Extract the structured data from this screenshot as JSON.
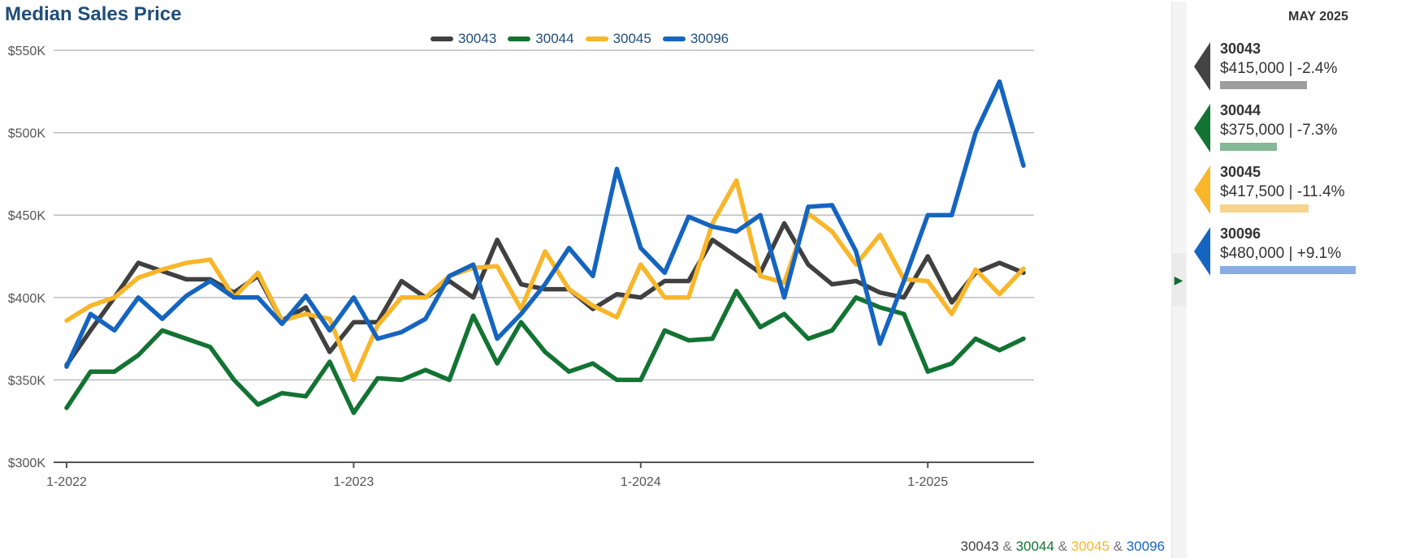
{
  "title": "Median Sales Price",
  "chart_data": {
    "type": "line",
    "ylim": [
      300000,
      550000
    ],
    "yticks": [
      {
        "value": 550000,
        "label": "$550K"
      },
      {
        "value": 500000,
        "label": "$500K"
      },
      {
        "value": 450000,
        "label": "$450K"
      },
      {
        "value": 400000,
        "label": "$400K"
      },
      {
        "value": 350000,
        "label": "$350K"
      },
      {
        "value": 300000,
        "label": "$300K"
      }
    ],
    "x": [
      "2022-01",
      "2022-02",
      "2022-03",
      "2022-04",
      "2022-05",
      "2022-06",
      "2022-07",
      "2022-08",
      "2022-09",
      "2022-10",
      "2022-11",
      "2022-12",
      "2023-01",
      "2023-02",
      "2023-03",
      "2023-04",
      "2023-05",
      "2023-06",
      "2023-07",
      "2023-08",
      "2023-09",
      "2023-10",
      "2023-11",
      "2023-12",
      "2024-01",
      "2024-02",
      "2024-03",
      "2024-04",
      "2024-05",
      "2024-06",
      "2024-07",
      "2024-08",
      "2024-09",
      "2024-10",
      "2024-11",
      "2024-12",
      "2025-01",
      "2025-02",
      "2025-03",
      "2025-04",
      "2025-05"
    ],
    "xticks": [
      {
        "x": "2022-01",
        "label": "1-2022"
      },
      {
        "x": "2023-01",
        "label": "1-2023"
      },
      {
        "x": "2024-01",
        "label": "1-2024"
      },
      {
        "x": "2025-01",
        "label": "1-2025"
      }
    ],
    "grid": true,
    "legend_position": "top",
    "series": [
      {
        "name": "30043",
        "color": "#404040",
        "values": [
          359000,
          380000,
          400000,
          421000,
          416000,
          411000,
          411000,
          403000,
          413000,
          386000,
          394000,
          367000,
          385000,
          385000,
          410000,
          400000,
          410000,
          400000,
          435000,
          408000,
          405000,
          405000,
          393000,
          402000,
          400000,
          410000,
          410000,
          435000,
          425000,
          415000,
          445000,
          420000,
          408000,
          410000,
          403000,
          400000,
          425000,
          397000,
          415000,
          421000,
          415000
        ]
      },
      {
        "name": "30044",
        "color": "#137333",
        "values": [
          333000,
          355000,
          355000,
          365000,
          380000,
          375000,
          370000,
          350000,
          335000,
          342000,
          340000,
          361000,
          330000,
          351000,
          350000,
          356000,
          350000,
          389000,
          360000,
          385000,
          367000,
          355000,
          360000,
          350000,
          350000,
          380000,
          374000,
          375000,
          404000,
          382000,
          390000,
          375000,
          380000,
          400000,
          394000,
          390000,
          355000,
          360000,
          375000,
          368000,
          375000
        ]
      },
      {
        "name": "30045",
        "color": "#f8b62a",
        "values": [
          386000,
          395000,
          400000,
          412000,
          417000,
          421000,
          423000,
          400000,
          415000,
          386000,
          390000,
          387000,
          350000,
          383000,
          400000,
          400000,
          413000,
          418000,
          419000,
          393000,
          428000,
          405000,
          395000,
          388000,
          420000,
          400000,
          400000,
          445000,
          471000,
          413000,
          409000,
          451000,
          440000,
          420000,
          438000,
          411000,
          410000,
          390000,
          417000,
          402000,
          417500
        ]
      },
      {
        "name": "30096",
        "color": "#1565c0",
        "values": [
          358000,
          390000,
          380000,
          400000,
          387000,
          401000,
          410000,
          400000,
          400000,
          384000,
          401000,
          380000,
          400000,
          375000,
          379000,
          387000,
          413000,
          420000,
          375000,
          390000,
          408000,
          430000,
          413000,
          478000,
          430000,
          415000,
          449000,
          443000,
          440000,
          450000,
          400000,
          455000,
          456000,
          428000,
          372000,
          410000,
          450000,
          450000,
          500000,
          531000,
          480000
        ]
      }
    ]
  },
  "footer_series": [
    {
      "name": "30043",
      "color": "#404040"
    },
    {
      "name": "30044",
      "color": "#137333"
    },
    {
      "name": "30045",
      "color": "#f8b62a"
    },
    {
      "name": "30096",
      "color": "#1565c0"
    }
  ],
  "footer_separator": "&",
  "side_panel": {
    "title": "MAY 2025",
    "cards": [
      {
        "name": "30043",
        "value": "$415,000 | -2.4%",
        "color": "#444444",
        "bar_color": "#9e9e9e",
        "bar_fraction": 0.415
      },
      {
        "name": "30044",
        "value": "$375,000 | -7.3%",
        "color": "#137333",
        "bar_color": "#85b896",
        "bar_fraction": 0.375
      },
      {
        "name": "30045",
        "value": "$417,500 | -11.4%",
        "color": "#f8b62a",
        "bar_color": "#f7d58c",
        "bar_fraction": 0.4175
      },
      {
        "name": "30096",
        "value": "$480,000 | +9.1%",
        "color": "#1565c0",
        "bar_color": "#86aee0",
        "bar_fraction": 0.48
      }
    ]
  }
}
